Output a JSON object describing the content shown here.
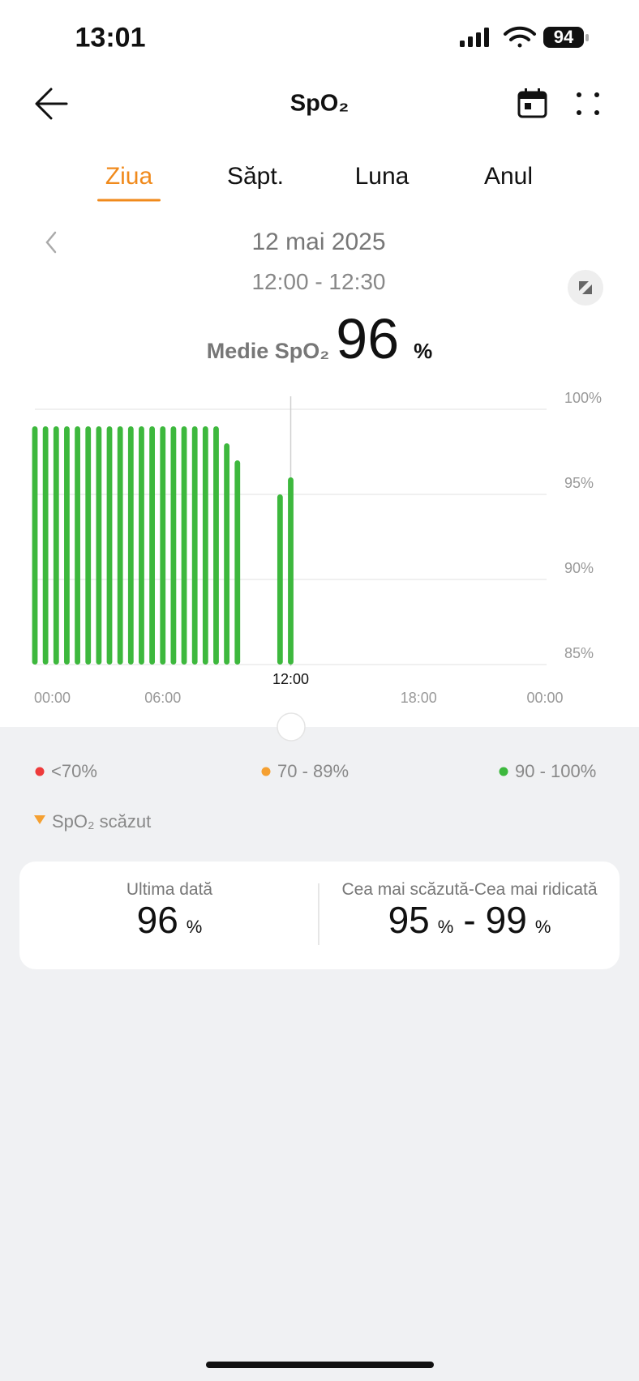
{
  "status_bar": {
    "time": "13:01",
    "battery": "94"
  },
  "header": {
    "title": "SpO₂"
  },
  "tabs": {
    "items": [
      "Ziua",
      "Săpt.",
      "Luna",
      "Anul"
    ],
    "active": 0
  },
  "date": "12 mai 2025",
  "time_range": "12:00 - 12:30",
  "average": {
    "label": "Medie SpO₂",
    "value": 96,
    "unit": "%"
  },
  "chart_data": {
    "type": "bar",
    "x": [
      0,
      0.5,
      1,
      1.5,
      2,
      2.5,
      3,
      3.5,
      4,
      4.5,
      5,
      5.5,
      6,
      6.5,
      7,
      7.5,
      8,
      8.5,
      9,
      9.5,
      11.5,
      12
    ],
    "values": [
      99,
      99,
      99,
      99,
      99,
      99,
      99,
      99,
      99,
      99,
      99,
      99,
      99,
      99,
      99,
      99,
      99,
      99,
      98,
      97,
      95,
      96
    ],
    "color": "#3db83d",
    "xlim": [
      0,
      24
    ],
    "xticks": [
      {
        "value": 0,
        "label": "00:00"
      },
      {
        "value": 6,
        "label": "06:00"
      },
      {
        "value": 12,
        "label": "12:00"
      },
      {
        "value": 18,
        "label": "18:00"
      },
      {
        "value": 24,
        "label": "00:00"
      }
    ],
    "ylim": [
      85,
      100
    ],
    "yticks": [
      {
        "value": 100,
        "label": "100%"
      },
      {
        "value": 95,
        "label": "95%"
      },
      {
        "value": 90,
        "label": "90%"
      },
      {
        "value": 85,
        "label": "85%"
      }
    ],
    "grid": true,
    "cursor": 12
  },
  "legend": [
    {
      "label": "<70%",
      "color": "#ee3b3b"
    },
    {
      "label": "70 - 89%",
      "color": "#f5a031"
    },
    {
      "label": "90 - 100%",
      "color": "#3db83d"
    }
  ],
  "low_marker": {
    "label": "SpO₂ scăzut",
    "color": "#f5a031"
  },
  "stats": {
    "last": {
      "label": "Ultima dată",
      "value": 96,
      "unit": "%"
    },
    "range": {
      "label": "Cea mai scăzută-Cea mai ridicată",
      "min": 95,
      "min_unit": "%",
      "separator": "-",
      "max": 99,
      "max_unit": "%"
    }
  }
}
